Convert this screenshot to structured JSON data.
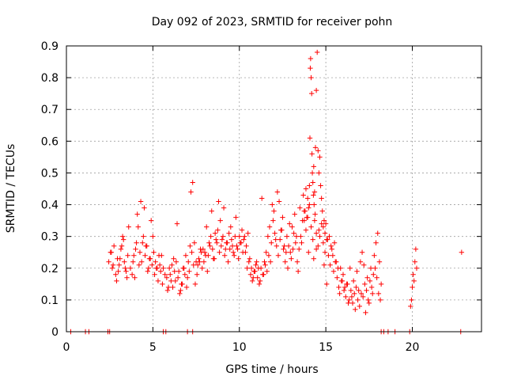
{
  "chart_data": {
    "type": "scatter",
    "title": "Day 092 of 2023, SRMTID for receiver pohn",
    "xlabel": "GPS time / hours",
    "ylabel": "SRMTID / TECUs",
    "xlim": [
      0,
      24
    ],
    "ylim": [
      0,
      0.9
    ],
    "xticks": [
      0,
      5,
      10,
      15,
      20
    ],
    "xtick_labels": [
      "0",
      "5",
      "10",
      "15",
      "20"
    ],
    "yticks": [
      0,
      0.1,
      0.2,
      0.3,
      0.4,
      0.5,
      0.6,
      0.7,
      0.8,
      0.9
    ],
    "ytick_labels": [
      "0",
      "0.1",
      "0.2",
      "0.3",
      "0.4",
      "0.5",
      "0.6",
      "0.7",
      "0.8",
      "0.9"
    ],
    "grid": true,
    "marker": "plus",
    "color": "#ff0000",
    "series": [
      {
        "name": "SRMTID",
        "x": [
          0.25,
          1.1,
          1.3,
          2.4,
          2.5,
          5.6,
          5.75,
          7.0,
          7.3,
          18.2,
          18.35,
          18.6,
          19.0,
          19.85,
          22.8,
          2.45,
          2.55,
          2.65,
          2.75,
          2.85,
          2.95,
          3.05,
          3.15,
          3.25,
          3.35,
          3.45,
          3.55,
          3.7,
          3.85,
          3.95,
          4.05,
          4.15,
          4.25,
          4.35,
          4.45,
          4.55,
          4.65,
          4.75,
          4.85,
          4.95,
          5.05,
          5.15,
          5.25,
          5.35,
          5.45,
          5.55,
          5.7,
          5.85,
          5.95,
          6.05,
          6.15,
          6.25,
          6.35,
          6.45,
          6.55,
          6.65,
          6.75,
          6.85,
          6.95,
          7.05,
          7.15,
          7.25,
          7.35,
          7.45,
          7.55,
          7.65,
          7.75,
          7.85,
          7.95,
          8.05,
          8.15,
          8.25,
          8.35,
          8.45,
          8.55,
          8.65,
          8.75,
          8.85,
          8.95,
          9.05,
          9.15,
          9.25,
          9.35,
          9.45,
          9.55,
          9.65,
          9.75,
          9.85,
          9.95,
          10.05,
          10.15,
          10.25,
          10.35,
          10.45,
          10.55,
          10.65,
          10.75,
          10.85,
          10.95,
          11.05,
          11.15,
          11.25,
          11.35,
          11.45,
          11.55,
          11.65,
          11.75,
          11.85,
          11.95,
          12.05,
          12.15,
          12.25,
          12.35,
          12.45,
          12.55,
          12.65,
          12.75,
          12.85,
          12.95,
          13.05,
          13.15,
          13.25,
          13.35,
          13.45,
          13.55,
          13.65,
          13.75,
          13.85,
          13.95,
          14.05,
          14.15,
          14.25,
          14.35,
          14.45,
          14.55,
          14.65,
          14.75,
          14.85,
          14.95,
          15.05,
          15.15,
          15.25,
          15.35,
          15.45,
          15.55,
          15.65,
          15.75,
          15.85,
          15.95,
          16.05,
          16.15,
          16.25,
          16.35,
          16.45,
          16.55,
          16.65,
          16.75,
          16.85,
          16.95,
          17.05,
          17.15,
          17.25,
          17.35,
          17.45,
          17.55,
          17.65,
          17.75,
          17.85,
          17.95,
          18.05,
          18.15,
          19.9,
          19.95,
          20.0,
          20.05,
          20.1,
          20.15,
          20.2,
          20.25,
          22.85,
          3.3,
          3.6,
          4.1,
          4.3,
          4.5,
          4.6,
          4.9,
          5.0,
          6.4,
          7.2,
          7.3,
          7.4,
          7.7,
          7.8,
          8.1,
          8.4,
          8.6,
          8.8,
          8.9,
          9.1,
          9.3,
          9.5,
          9.8,
          10.3,
          10.5,
          11.3,
          11.9,
          12.0,
          12.2,
          12.3,
          12.5,
          12.9,
          13.2,
          13.5,
          13.7,
          13.75,
          13.8,
          13.85,
          13.9,
          13.95,
          14.0,
          14.05,
          14.08,
          14.1,
          14.12,
          14.15,
          14.18,
          14.2,
          14.22,
          14.25,
          14.28,
          14.3,
          14.32,
          14.35,
          14.38,
          14.4,
          14.45,
          14.5,
          14.55,
          14.6,
          14.65,
          14.7,
          14.75,
          14.8,
          14.85,
          14.9,
          14.95,
          15.0,
          15.1,
          15.2,
          15.3,
          15.4,
          15.5,
          15.6,
          15.7,
          16.0,
          16.2,
          16.4,
          16.6,
          16.8,
          17.0,
          17.1,
          17.2,
          17.4,
          17.6,
          17.8,
          17.9,
          18.0,
          18.1,
          18.2,
          2.6,
          2.7,
          2.9,
          3.0,
          3.1,
          3.2,
          3.4,
          3.5,
          3.8,
          3.9,
          4.0,
          4.2,
          4.4,
          4.7,
          4.8,
          5.1,
          5.2,
          5.3,
          5.4,
          5.5,
          5.6,
          5.8,
          5.9,
          6.0,
          6.1,
          6.2,
          6.3,
          6.5,
          6.6,
          6.7,
          6.8,
          6.9,
          7.0,
          7.1,
          7.5,
          7.6,
          7.9,
          8.0,
          8.2,
          8.3,
          8.5,
          8.7,
          9.0,
          9.2,
          9.4,
          9.6,
          9.7,
          9.9,
          10.0,
          10.1,
          10.2,
          10.4,
          10.6,
          10.7,
          10.8,
          10.9,
          11.0,
          11.1,
          11.2,
          11.4,
          11.5,
          11.6,
          11.7,
          11.8,
          12.1,
          12.4,
          12.6,
          12.7,
          12.8,
          13.0,
          13.1,
          13.3,
          13.4,
          13.6,
          14.0,
          15.8,
          15.9,
          16.1,
          16.3,
          16.5,
          16.7,
          16.9,
          17.3,
          17.5,
          17.7,
          14.3,
          14.45,
          14.6,
          14.9,
          15.05
        ],
        "y": [
          0,
          0,
          0,
          0,
          0,
          0,
          0,
          0,
          0,
          0,
          0,
          0,
          0,
          0,
          0,
          0.22,
          0.25,
          0.2,
          0.27,
          0.18,
          0.23,
          0.21,
          0.26,
          0.3,
          0.22,
          0.19,
          0.24,
          0.2,
          0.22,
          0.17,
          0.28,
          0.33,
          0.25,
          0.22,
          0.3,
          0.24,
          0.27,
          0.2,
          0.23,
          0.21,
          0.25,
          0.22,
          0.2,
          0.24,
          0.19,
          0.15,
          0.18,
          0.13,
          0.2,
          0.16,
          0.14,
          0.19,
          0.22,
          0.17,
          0.12,
          0.15,
          0.2,
          0.18,
          0.14,
          0.22,
          0.27,
          0.25,
          0.21,
          0.15,
          0.18,
          0.23,
          0.26,
          0.2,
          0.22,
          0.24,
          0.19,
          0.28,
          0.3,
          0.26,
          0.23,
          0.29,
          0.32,
          0.25,
          0.27,
          0.3,
          0.24,
          0.28,
          0.22,
          0.26,
          0.29,
          0.25,
          0.3,
          0.27,
          0.23,
          0.28,
          0.32,
          0.29,
          0.25,
          0.2,
          0.22,
          0.18,
          0.16,
          0.19,
          0.21,
          0.17,
          0.15,
          0.2,
          0.18,
          0.22,
          0.25,
          0.3,
          0.33,
          0.28,
          0.35,
          0.31,
          0.27,
          0.24,
          0.29,
          0.32,
          0.26,
          0.22,
          0.3,
          0.27,
          0.25,
          0.33,
          0.31,
          0.28,
          0.22,
          0.26,
          0.3,
          0.35,
          0.38,
          0.32,
          0.36,
          0.4,
          0.33,
          0.29,
          0.35,
          0.31,
          0.27,
          0.3,
          0.34,
          0.28,
          0.25,
          0.29,
          0.24,
          0.21,
          0.26,
          0.19,
          0.22,
          0.17,
          0.14,
          0.2,
          0.16,
          0.13,
          0.11,
          0.15,
          0.1,
          0.13,
          0.09,
          0.12,
          0.14,
          0.1,
          0.08,
          0.12,
          0.11,
          0.15,
          0.13,
          0.1,
          0.16,
          0.14,
          0.18,
          0.2,
          0.17,
          0.12,
          0.1,
          0.08,
          0.1,
          0.14,
          0.18,
          0.16,
          0.22,
          0.26,
          0.2,
          0.25,
          0.29,
          0.33,
          0.37,
          0.41,
          0.39,
          0.27,
          0.35,
          0.3,
          0.34,
          0.44,
          0.47,
          0.28,
          0.22,
          0.25,
          0.33,
          0.38,
          0.31,
          0.41,
          0.35,
          0.39,
          0.28,
          0.33,
          0.36,
          0.3,
          0.31,
          0.42,
          0.4,
          0.38,
          0.44,
          0.41,
          0.36,
          0.34,
          0.37,
          0.39,
          0.43,
          0.35,
          0.38,
          0.45,
          0.36,
          0.42,
          0.39,
          0.46,
          0.61,
          0.83,
          0.86,
          0.8,
          0.75,
          0.56,
          0.5,
          0.47,
          0.43,
          0.52,
          0.4,
          0.44,
          0.37,
          0.58,
          0.76,
          0.88,
          0.57,
          0.5,
          0.55,
          0.46,
          0.42,
          0.38,
          0.33,
          0.35,
          0.31,
          0.34,
          0.29,
          0.3,
          0.27,
          0.24,
          0.28,
          0.22,
          0.2,
          0.18,
          0.15,
          0.2,
          0.16,
          0.19,
          0.22,
          0.25,
          0.21,
          0.17,
          0.2,
          0.24,
          0.28,
          0.31,
          0.22,
          0.15,
          0.25,
          0.21,
          0.16,
          0.19,
          0.23,
          0.27,
          0.2,
          0.17,
          0.18,
          0.24,
          0.26,
          0.21,
          0.28,
          0.19,
          0.23,
          0.18,
          0.2,
          0.16,
          0.21,
          0.24,
          0.2,
          0.17,
          0.14,
          0.18,
          0.21,
          0.23,
          0.16,
          0.19,
          0.13,
          0.15,
          0.2,
          0.24,
          0.17,
          0.19,
          0.22,
          0.21,
          0.26,
          0.25,
          0.24,
          0.27,
          0.23,
          0.28,
          0.29,
          0.26,
          0.31,
          0.27,
          0.24,
          0.26,
          0.3,
          0.28,
          0.25,
          0.27,
          0.23,
          0.2,
          0.17,
          0.19,
          0.22,
          0.2,
          0.16,
          0.18,
          0.21,
          0.19,
          0.24,
          0.22,
          0.29,
          0.32,
          0.27,
          0.25,
          0.2,
          0.23,
          0.26,
          0.3,
          0.19,
          0.28,
          0.25,
          0.12,
          0.16,
          0.14,
          0.09,
          0.11,
          0.07,
          0.13,
          0.06,
          0.09,
          0.12,
          0.23,
          0.26,
          0.32,
          0.21,
          0.15
        ]
      }
    ]
  }
}
